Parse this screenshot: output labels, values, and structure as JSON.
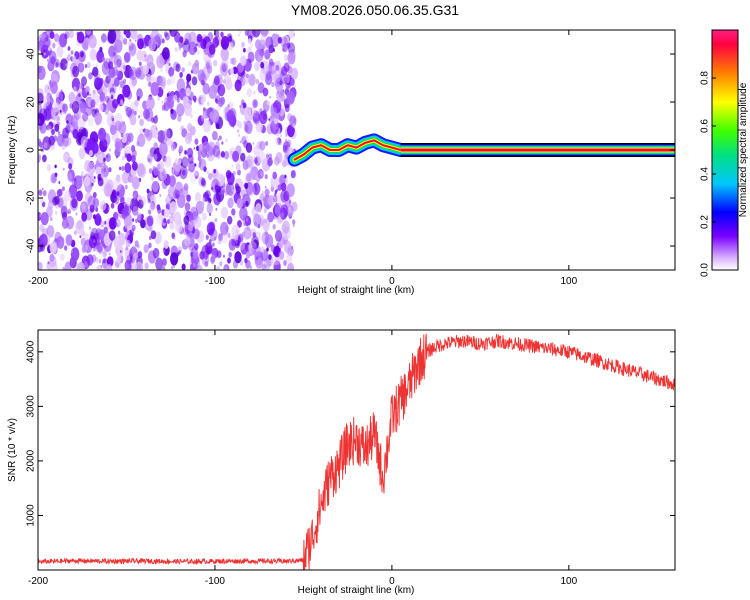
{
  "page_title": "YM08.2026.050.06.35.G31",
  "chart_data": [
    {
      "type": "heatmap",
      "title": "",
      "xlabel": "Height of straight line (km)",
      "ylabel": "Frequency (Hz)",
      "xlim": [
        -200,
        160
      ],
      "ylim": [
        -50,
        50
      ],
      "xticks": [
        -200,
        -100,
        0,
        100
      ],
      "yticks": [
        -40,
        -20,
        0,
        20,
        40
      ],
      "colorbar": {
        "label": "Normalized spectral amplitude",
        "range": [
          0.0,
          1.0
        ],
        "ticks": [
          0.0,
          0.2,
          0.4,
          0.6,
          0.8
        ]
      },
      "regions": [
        {
          "name": "noise",
          "x_range": [
            -200,
            -55
          ],
          "description_values": "scattered low amplitude (0.0-0.2)"
        },
        {
          "name": "transition",
          "x_range": [
            -55,
            5
          ],
          "freq_track": [
            [
              -55,
              -4
            ],
            [
              -50,
              -2
            ],
            [
              -45,
              1
            ],
            [
              -40,
              2
            ],
            [
              -35,
              0
            ],
            [
              -30,
              0
            ],
            [
              -25,
              2
            ],
            [
              -20,
              1
            ],
            [
              -15,
              3
            ],
            [
              -10,
              4
            ],
            [
              -5,
              2
            ],
            [
              0,
              1
            ],
            [
              5,
              0
            ]
          ]
        },
        {
          "name": "stable",
          "x_range": [
            5,
            160
          ],
          "frequency": 0,
          "amplitude": 1.0
        }
      ]
    },
    {
      "type": "line",
      "title": "",
      "xlabel": "Height of straight line (km)",
      "ylabel": "SNR (10 * v/v)",
      "xlim": [
        -200,
        160
      ],
      "ylim": [
        0,
        4400
      ],
      "xticks": [
        -200,
        -100,
        0,
        100
      ],
      "yticks": [
        1000,
        2000,
        3000,
        4000
      ],
      "series": [
        {
          "name": "SNR",
          "color": "#ee3333",
          "x": [
            -200,
            -180,
            -160,
            -140,
            -120,
            -100,
            -80,
            -60,
            -50,
            -45,
            -40,
            -35,
            -30,
            -25,
            -20,
            -15,
            -10,
            -5,
            0,
            5,
            10,
            15,
            20,
            25,
            30,
            40,
            50,
            60,
            70,
            80,
            90,
            100,
            110,
            120,
            130,
            140,
            150,
            160
          ],
          "y": [
            150,
            170,
            160,
            165,
            155,
            160,
            165,
            160,
            180,
            600,
            1200,
            1700,
            1900,
            2300,
            2400,
            2200,
            2500,
            1700,
            2800,
            3100,
            3400,
            3800,
            4000,
            4100,
            4150,
            4200,
            4150,
            4200,
            4150,
            4100,
            4050,
            4000,
            3900,
            3800,
            3700,
            3600,
            3500,
            3400
          ]
        }
      ]
    }
  ]
}
